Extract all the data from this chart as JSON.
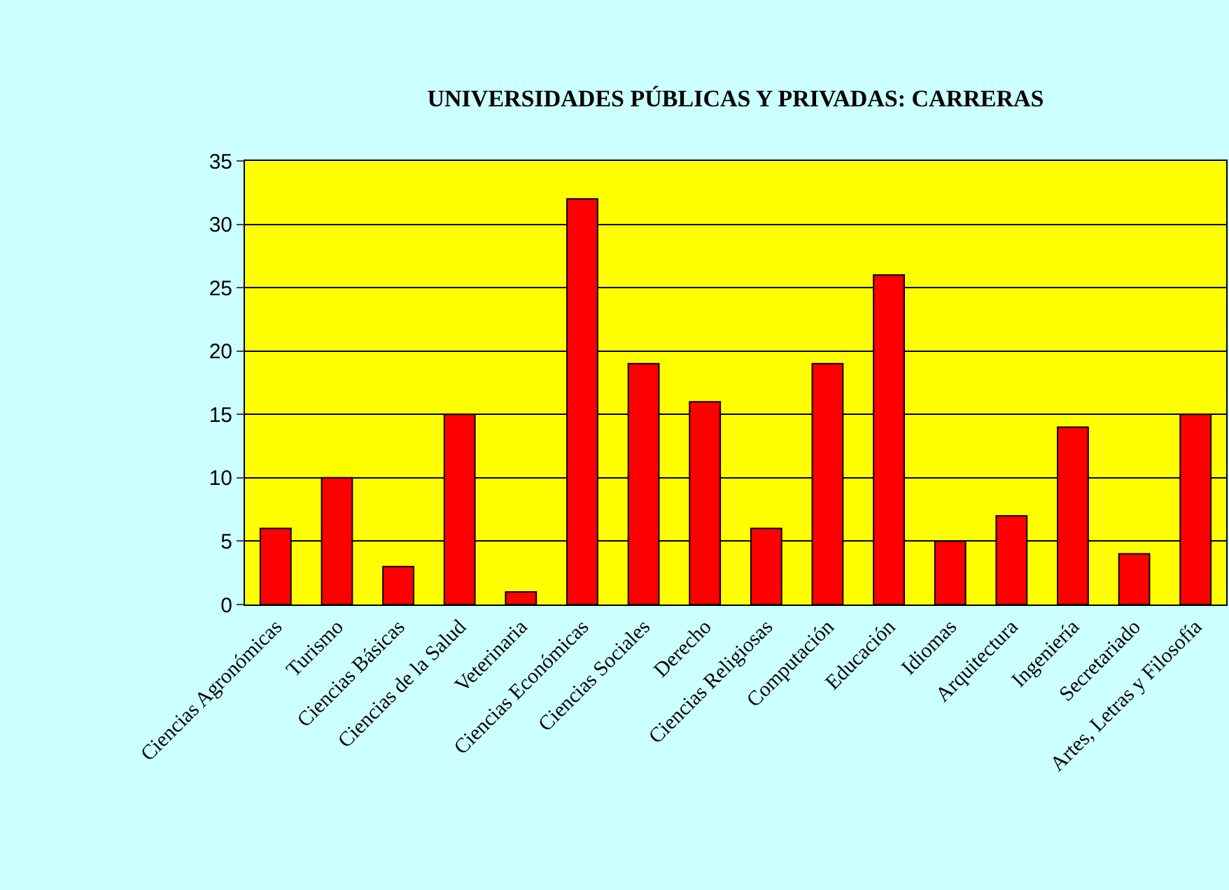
{
  "chart_data": {
    "type": "bar",
    "title": "UNIVERSIDADES PÚBLICAS Y PRIVADAS: CARRERAS",
    "categories": [
      "Ciencias Agronómicas",
      "Turismo",
      "Ciencias Básicas",
      "Ciencias de la Salud",
      "Veterinaria",
      "Ciencias Económicas",
      "Ciencias Sociales",
      "Derecho",
      "Ciencias Religiosas",
      "Computación",
      "Educación",
      "Idiomas",
      "Arquitectura",
      "Ingeniería",
      "Secretariado",
      "Artes, Letras y Filosofía"
    ],
    "values": [
      6,
      10,
      3,
      15,
      1,
      32,
      19,
      16,
      6,
      19,
      26,
      5,
      7,
      14,
      4,
      15
    ],
    "color": "#ff0000",
    "ylim": [
      0,
      35
    ],
    "yticks": [
      0,
      5,
      10,
      15,
      20,
      25,
      30,
      35
    ],
    "grid": "y"
  }
}
